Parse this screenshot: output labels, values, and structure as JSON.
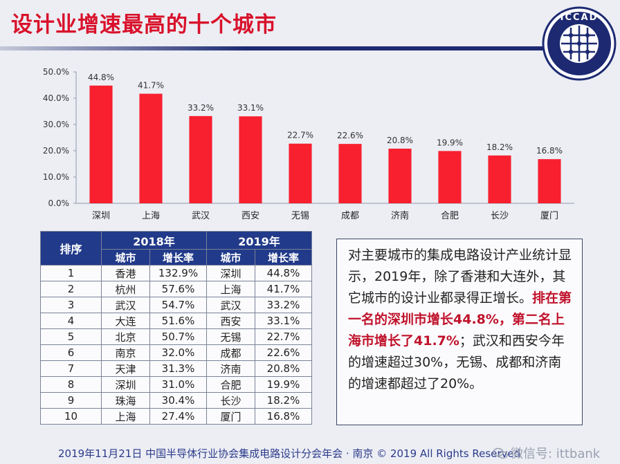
{
  "title": "设计业增速最高的十个城市",
  "logo": {
    "text": "ICCAD"
  },
  "chart_data": {
    "type": "bar",
    "categories": [
      "深圳",
      "上海",
      "武汉",
      "西安",
      "无锡",
      "成都",
      "济南",
      "合肥",
      "长沙",
      "厦门"
    ],
    "values": [
      44.8,
      41.7,
      33.2,
      33.1,
      22.7,
      22.6,
      20.8,
      19.9,
      18.2,
      16.8
    ],
    "value_labels": [
      "44.8%",
      "41.7%",
      "33.2%",
      "33.1%",
      "22.7%",
      "22.6%",
      "20.8%",
      "19.9%",
      "18.2%",
      "16.8%"
    ],
    "ylim": [
      0,
      50
    ],
    "yticks": [
      "0.0%",
      "10.0%",
      "20.0%",
      "30.0%",
      "40.0%",
      "50.0%"
    ],
    "bar_color": "#f8202f",
    "grid": false,
    "legend": "none"
  },
  "table": {
    "rank_header": "排序",
    "year1": "2018年",
    "year2": "2019年",
    "city_header": "城市",
    "rate_header": "增长率",
    "rows": [
      {
        "rank": "1",
        "city2018": "香港",
        "rate2018": "132.9%",
        "city2019": "深圳",
        "rate2019": "44.8%"
      },
      {
        "rank": "2",
        "city2018": "杭州",
        "rate2018": "57.6%",
        "city2019": "上海",
        "rate2019": "41.7%"
      },
      {
        "rank": "3",
        "city2018": "武汉",
        "rate2018": "54.7%",
        "city2019": "武汉",
        "rate2019": "33.2%"
      },
      {
        "rank": "4",
        "city2018": "大连",
        "rate2018": "51.6%",
        "city2019": "西安",
        "rate2019": "33.1%"
      },
      {
        "rank": "5",
        "city2018": "北京",
        "rate2018": "50.7%",
        "city2019": "无锡",
        "rate2019": "22.7%"
      },
      {
        "rank": "6",
        "city2018": "南京",
        "rate2018": "32.0%",
        "city2019": "成都",
        "rate2019": "22.6%"
      },
      {
        "rank": "7",
        "city2018": "天津",
        "rate2018": "31.3%",
        "city2019": "济南",
        "rate2019": "20.8%"
      },
      {
        "rank": "8",
        "city2018": "深圳",
        "rate2018": "31.0%",
        "city2019": "合肥",
        "rate2019": "19.9%"
      },
      {
        "rank": "9",
        "city2018": "珠海",
        "rate2018": "30.4%",
        "city2019": "长沙",
        "rate2019": "18.2%"
      },
      {
        "rank": "10",
        "city2018": "上海",
        "rate2018": "27.4%",
        "city2019": "厦门",
        "rate2019": "16.8%"
      }
    ]
  },
  "summary": {
    "part1": "对主要城市的集成电路设计产业统计显示，2019年，除了香港和大连外，其它城市的设计业都录得正增长。",
    "highlight": "排在第一名的深圳市增长44.8%，第二名上海市增长了41.7%",
    "part2": "；武汉和西安今年的增速超过30%，无锡、成都和济南的增速都超过了20%。"
  },
  "footer": {
    "text": "2019年11月21日  中国半导体行业协会集成电路设计分会年会 · 南京 © 2019 All Rights Reserved",
    "watermark": "微信号: ittbank"
  },
  "colors": {
    "title": "#d9112b",
    "table_header": "#213a8a",
    "highlight": "#c0122b",
    "footer": "#2b3a8a"
  }
}
